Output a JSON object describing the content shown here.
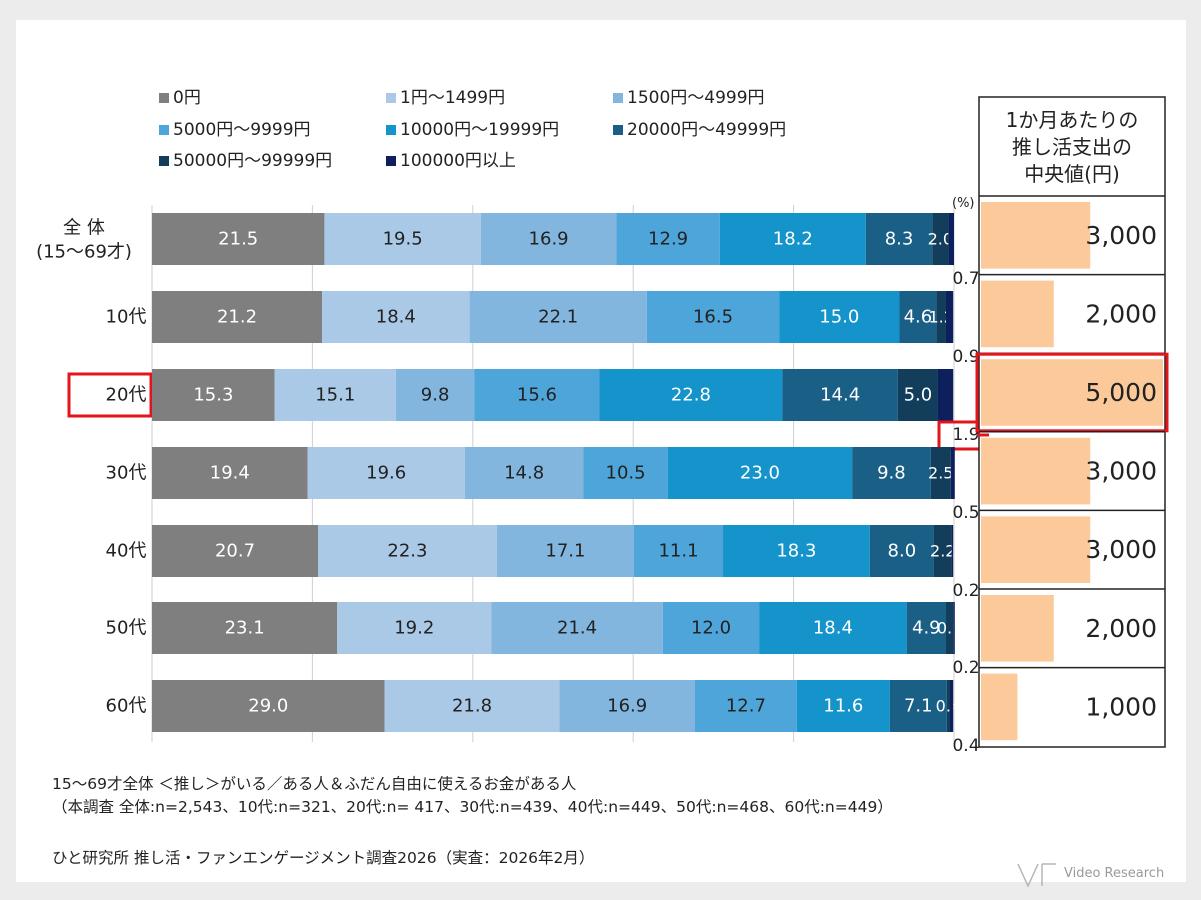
{
  "chart_data": {
    "type": "bar",
    "orientation": "horizontal-stacked-100",
    "unit_label": "(%)",
    "categories": [
      "全 体\n(15〜69才)",
      "10代",
      "20代",
      "30代",
      "40代",
      "50代",
      "60代"
    ],
    "highlighted_category": "20代",
    "series": [
      {
        "name": "0円",
        "color": "#7f7f7f",
        "values": [
          21.5,
          21.2,
          15.3,
          19.4,
          20.7,
          23.1,
          29.0
        ]
      },
      {
        "name": "1円〜1499円",
        "color": "#a9c9e6",
        "values": [
          19.5,
          18.4,
          15.1,
          19.6,
          22.3,
          19.2,
          21.8
        ]
      },
      {
        "name": "1500円〜4999円",
        "color": "#83b6df",
        "values": [
          16.9,
          22.1,
          9.8,
          14.8,
          17.1,
          21.4,
          16.9
        ]
      },
      {
        "name": "5000円〜9999円",
        "color": "#4ea5d9",
        "values": [
          12.9,
          16.5,
          15.6,
          10.5,
          11.1,
          12.0,
          12.7
        ]
      },
      {
        "name": "10000円〜19999円",
        "color": "#1594cc",
        "values": [
          18.2,
          15.0,
          22.8,
          23.0,
          18.3,
          18.4,
          11.6
        ]
      },
      {
        "name": "20000円〜49999円",
        "color": "#1a5f86",
        "values": [
          8.3,
          4.6,
          14.4,
          9.8,
          8.0,
          4.9,
          7.1
        ]
      },
      {
        "name": "50000円〜99999円",
        "color": "#123e5c",
        "values": [
          2.0,
          1.2,
          5.0,
          2.5,
          2.2,
          0.9,
          0.4
        ]
      },
      {
        "name": "100000円以上",
        "color": "#0d1f5c",
        "values": [
          0.7,
          0.9,
          1.9,
          0.5,
          0.2,
          0.2,
          0.4
        ]
      }
    ],
    "xlim": [
      0,
      100
    ],
    "legend_position": "top-left",
    "side_table": {
      "header": "1か月あたりの\n推し活支出の\n中央値(円)",
      "values": [
        "3,000",
        "2,000",
        "5,000",
        "3,000",
        "3,000",
        "2,000",
        "1,000"
      ],
      "numeric": [
        3000,
        2000,
        5000,
        3000,
        3000,
        2000,
        1000
      ],
      "max": 5000,
      "bar_color": "#fbc99a",
      "highlighted_index": 2
    }
  },
  "footnotes": {
    "line1": "15〜69才全体 ＜推し＞がいる／ある人＆ふだん自由に使えるお金がある人",
    "line2": "（本調査  全体:n=2,543、10代:n=321、20代:n= 417、30代:n=439、40代:n=449、50代:n=468、60代:n=449）",
    "line3": "ひと研究所  推し活・ファンエンゲージメント調査2026（実査：2026年2月）"
  },
  "brand": {
    "name": "Video Research"
  },
  "colors": {
    "highlight_red": "#e3141b",
    "label_text_light": "#ffffff",
    "label_text_dark": "#222222"
  }
}
